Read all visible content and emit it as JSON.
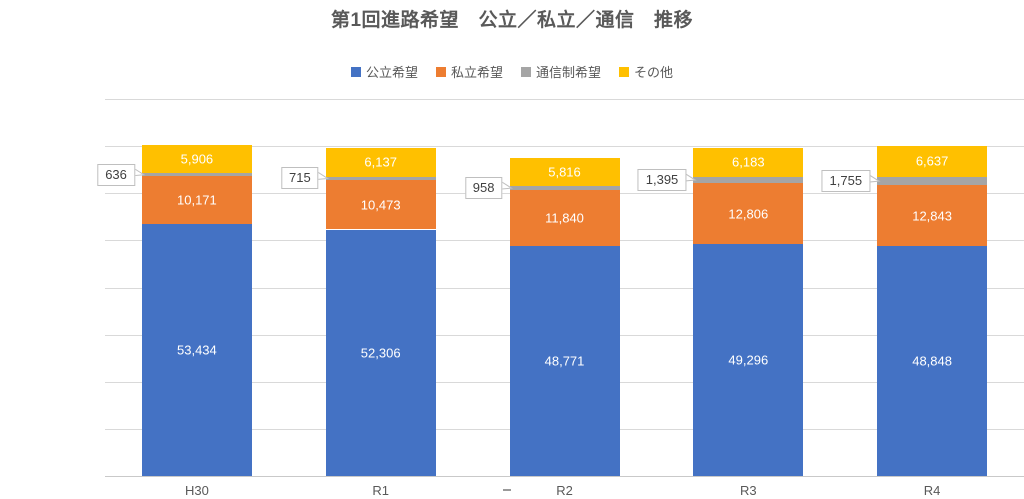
{
  "title": "第1回進路希望　公立／私立／通信　推移",
  "legend": {
    "items": [
      {
        "label": "公立希望",
        "color": "#4472C4"
      },
      {
        "label": "私立希望",
        "color": "#ED7D31"
      },
      {
        "label": "通信制希望",
        "color": "#A5A5A5"
      },
      {
        "label": "その他",
        "color": "#FFC000"
      }
    ]
  },
  "chart_data": {
    "type": "bar",
    "stacked": true,
    "title": "第1回進路希望　公立／私立／通信　推移",
    "categories": [
      "H30",
      "R1",
      "R2",
      "R3",
      "R4"
    ],
    "series": [
      {
        "name": "公立希望",
        "color": "#4472C4",
        "label_style": "inside",
        "values": [
          53434,
          52306,
          48771,
          49296,
          48848
        ],
        "labels": [
          "53,434",
          "52,306",
          "48,771",
          "49,296",
          "48,848"
        ]
      },
      {
        "name": "私立希望",
        "color": "#ED7D31",
        "label_style": "inside",
        "values": [
          10171,
          10473,
          11840,
          12806,
          12843
        ],
        "labels": [
          "10,171",
          "10,473",
          "11,840",
          "12,806",
          "12,843"
        ]
      },
      {
        "name": "通信制希望",
        "color": "#A5A5A5",
        "label_style": "callout",
        "values": [
          636,
          715,
          958,
          1395,
          1755
        ],
        "labels": [
          "636",
          "715",
          "958",
          "1,395",
          "1,755"
        ]
      },
      {
        "name": "その他",
        "color": "#FFC000",
        "label_style": "inside",
        "values": [
          5906,
          6137,
          5816,
          6183,
          6637
        ],
        "labels": [
          "5,906",
          "6,137",
          "5,816",
          "6,183",
          "6,637"
        ]
      }
    ],
    "xlabel": "",
    "ylabel": "",
    "ylim": [
      0,
      80000
    ],
    "gridline_step": 10000,
    "grid": true,
    "legend_position": "top",
    "data_label_color": "#ffffff"
  }
}
